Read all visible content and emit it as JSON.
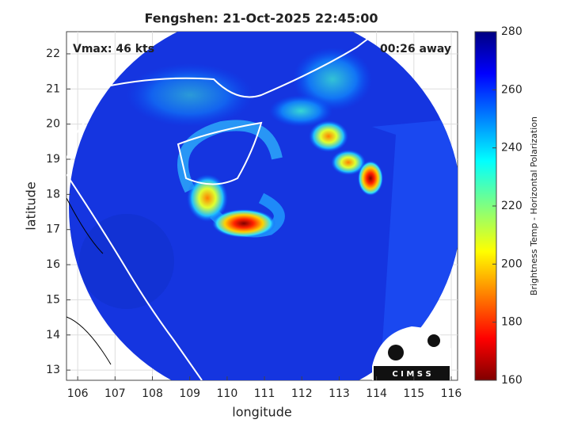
{
  "map": {
    "title": "Fengshen: 21-Oct-2025 22:45:00",
    "annotations": [
      "Vmax: 46 kts",
      "00:26 away"
    ],
    "xlabel": "longitude",
    "ylabel": "latitude",
    "xlim": [
      105.7,
      116.17
    ],
    "ylim": [
      12.71,
      22.63
    ],
    "xticks": [
      106,
      107,
      108,
      109,
      110,
      111,
      112,
      113,
      114,
      115,
      116
    ],
    "yticks": [
      13,
      14,
      15,
      16,
      17,
      18,
      19,
      20,
      21,
      22
    ]
  },
  "colorbar": {
    "label": "Brightness Temp - Horizontal Polarization",
    "lim": [
      160,
      280
    ],
    "ticks": [
      160,
      180,
      200,
      220,
      240,
      260,
      280
    ]
  },
  "logo": "C I M S S"
}
